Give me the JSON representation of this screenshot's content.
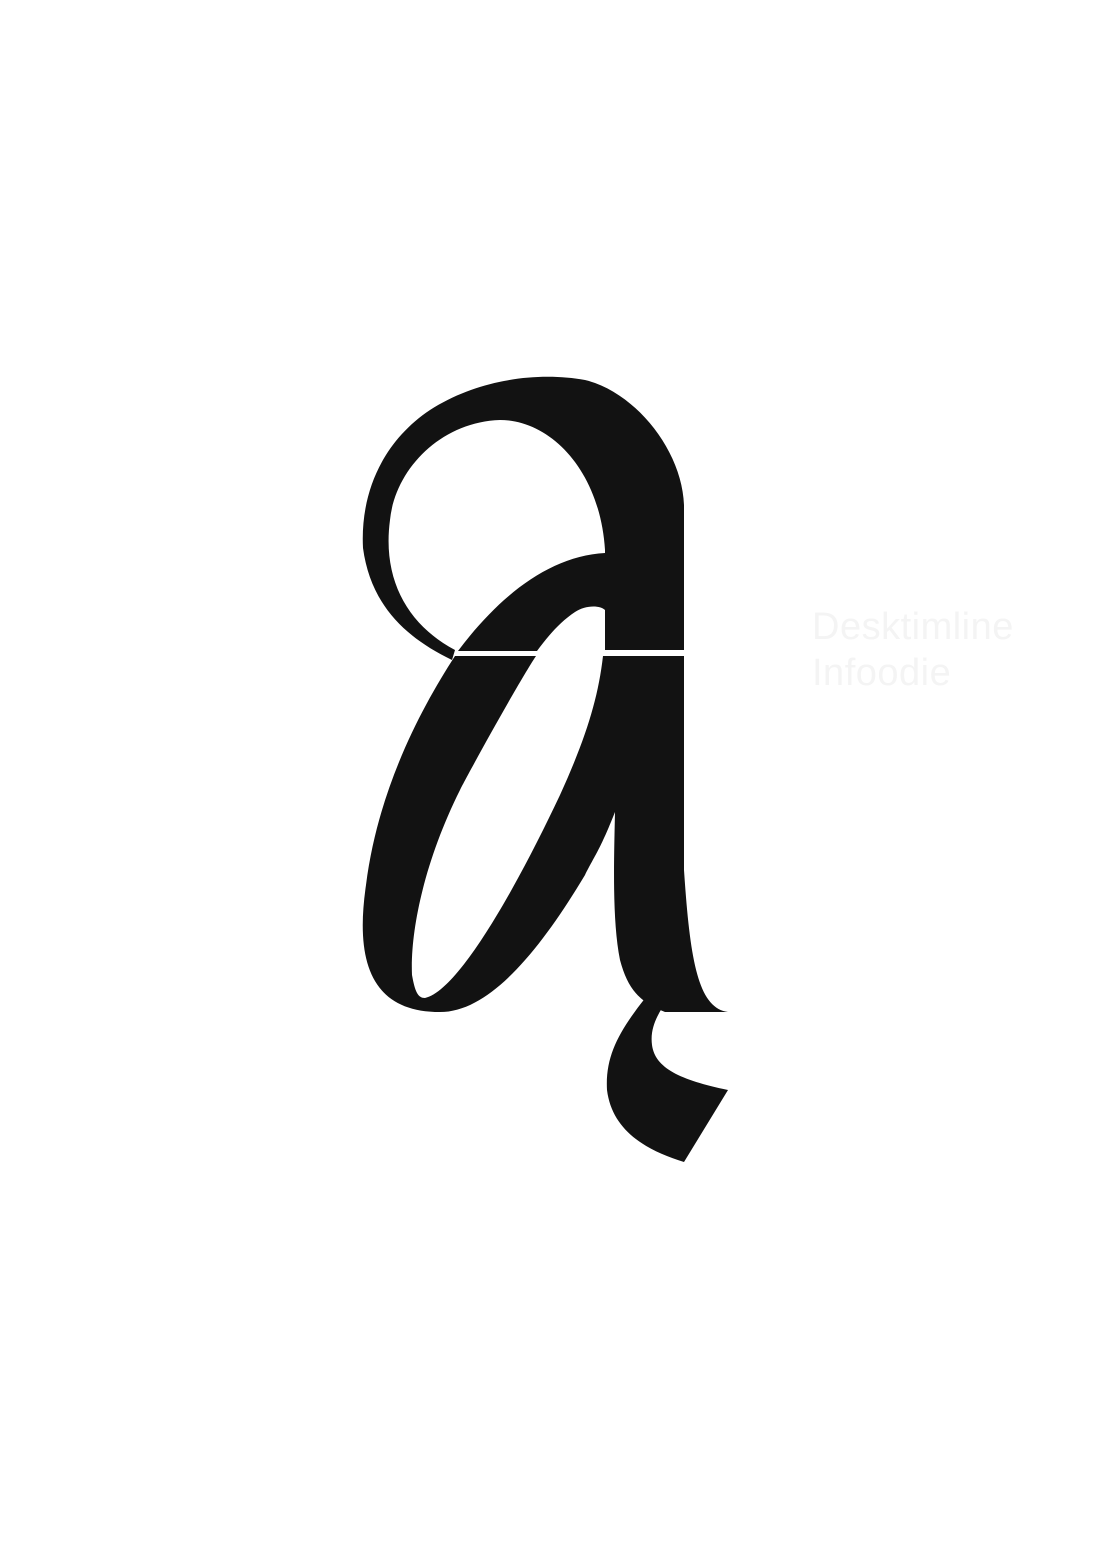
{
  "artwork": {
    "subject": "stylized-glyph",
    "ink_color": "#121212",
    "background_color": "#ffffff"
  },
  "watermark": {
    "line1": "Desktimline",
    "line2": "Infoodie",
    "color": "#f4f4f4"
  }
}
